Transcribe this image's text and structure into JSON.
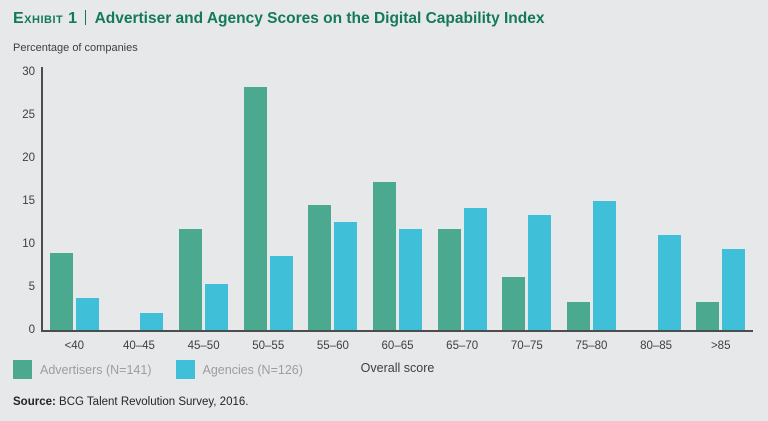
{
  "header": {
    "exhibit_label": "Exhibit 1",
    "title": "Advertiser and Agency Scores on the Digital Capability Index"
  },
  "y_axis_note": "Percentage of companies",
  "chart_data": {
    "type": "bar",
    "categories": [
      "<40",
      "40–45",
      "45–50",
      "50–55",
      "55–60",
      "60–65",
      "65–70",
      "70–75",
      "75–80",
      "80–85",
      ">85"
    ],
    "series": [
      {
        "name": "Advertisers (N=141)",
        "color": "#4ba98f",
        "values": [
          9,
          0,
          11.8,
          28.3,
          14.5,
          17.2,
          11.8,
          6.2,
          3.3,
          0,
          3.3
        ]
      },
      {
        "name": "Agencies (N=126)",
        "color": "#3fbfd8",
        "values": [
          3.7,
          2,
          5.3,
          8.6,
          12.6,
          11.8,
          14.2,
          13.4,
          15,
          11,
          9.4
        ]
      }
    ],
    "title": "Advertiser and Agency Scores on the Digital Capability Index",
    "xlabel": "Overall score",
    "ylabel": "Percentage of companies",
    "ylim": [
      0,
      30
    ],
    "yticks": [
      0,
      5,
      10,
      15,
      20,
      25,
      30
    ],
    "grid": false,
    "legend_position": "bottom-left"
  },
  "x_axis_title": "Overall score",
  "source": {
    "label": "Source:",
    "text": " BCG Talent Revolution Survey, 2016."
  },
  "colors": {
    "background": "#e7e8e9",
    "title_green": "#137a58",
    "advertisers": "#4ba98f",
    "agencies": "#3fbfd8",
    "axis": "#4b4d4f"
  }
}
